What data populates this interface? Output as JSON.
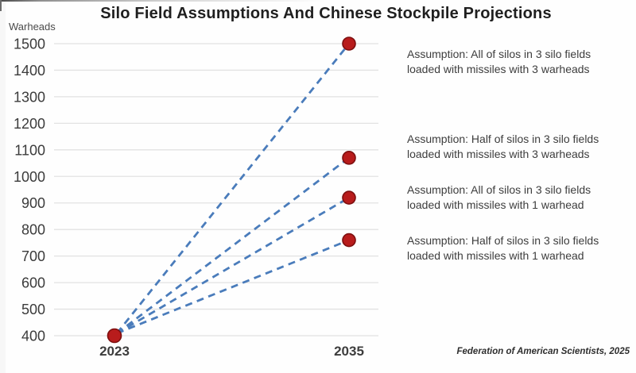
{
  "title": "Silo Field Assumptions And Chinese Stockpile Projections",
  "source": "Federation of American Scientists, 2025",
  "y_axis": {
    "title": "Warheads"
  },
  "annotations": [
    {
      "line1": "Assumption: All of silos in 3 silo fields",
      "line2": "loaded with missiles with 3 warheads"
    },
    {
      "line1": "Assumption: Half of silos in 3 silo fields",
      "line2": "loaded with missiles with 3 warheads"
    },
    {
      "line1": "Assumption: All of silos in 3 silo fields",
      "line2": "loaded with missiles with 1 warhead"
    },
    {
      "line1": "Assumption: Half of silos in 3 silo fields",
      "line2": "loaded with missiles with 1 warhead"
    }
  ],
  "chart_data": {
    "type": "line",
    "title": "Silo Field Assumptions And Chinese Stockpile Projections",
    "xlabel": "",
    "ylabel": "Warheads",
    "x": [
      2023,
      2035
    ],
    "xticklabels": [
      "2023",
      "2035"
    ],
    "series": [
      {
        "name": "All of silos in 3 silo fields loaded with missiles with 3 warheads",
        "values": [
          400,
          1500
        ]
      },
      {
        "name": "Half of silos in 3 silo fields loaded with missiles with 3 warheads",
        "values": [
          400,
          1070
        ]
      },
      {
        "name": "All of silos in 3 silo fields loaded with missiles with 1 warhead",
        "values": [
          400,
          920
        ]
      },
      {
        "name": "Half of silos in 3 silo fields loaded with missiles with 1 warhead",
        "values": [
          400,
          760
        ]
      }
    ],
    "ylim": [
      400,
      1500
    ],
    "ytick_step": 100,
    "grid": true,
    "legend": "right-annotations",
    "line_style": "dashed",
    "colors": {
      "line": "#4a7cbb",
      "marker_fill": "#b81c1c",
      "marker_stroke": "#7d0f0f",
      "grid": "#e2e2e2",
      "tick_text": "#3b3b3b",
      "title_text": "#1f1f1f"
    }
  }
}
